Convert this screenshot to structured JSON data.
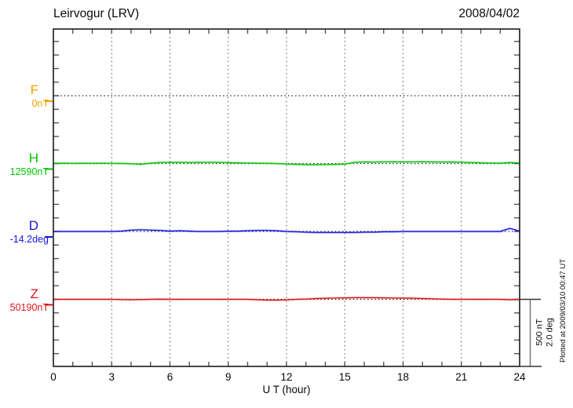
{
  "header": {
    "title": "Leirvogur (LRV)",
    "date": "2008/04/02"
  },
  "axes": {
    "xlabel": "U T (hour)",
    "x_ticks": [
      0,
      3,
      6,
      9,
      12,
      15,
      18,
      21,
      24
    ]
  },
  "scale_bar": {
    "nt": "500 nT",
    "deg": "2.0 deg"
  },
  "footer": {
    "plotted_at": "Plotted at 2009/03/10 00:47 UT"
  },
  "chart_data": {
    "type": "line",
    "title": "Leirvogur (LRV)",
    "date": "2008/04/02",
    "xlabel": "U T (hour)",
    "x_range": [
      0,
      24
    ],
    "x_ticks": [
      0,
      3,
      6,
      9,
      12,
      15,
      18,
      21,
      24
    ],
    "x_step_hours": 0.5,
    "grid": "dotted vertical lines every 3 h; dotted horizontal baseline per component; minor axis ticks every 1 h and every 100 nT (0.4 deg)",
    "legend_position": "left margin, one colored label per component",
    "scale": {
      "nT_per_division": 500,
      "deg_per_division": 2.0
    },
    "series": [
      {
        "name": "F",
        "reference": "0nT",
        "unit": "nT",
        "color": "#F0A300",
        "has_trace": false,
        "offsets": []
      },
      {
        "name": "H",
        "reference": "12590nT",
        "unit": "nT",
        "color": "#00C400",
        "has_trace": true,
        "offsets": [
          2,
          3,
          2,
          3,
          2,
          3,
          2,
          1,
          -2,
          -5,
          3,
          8,
          10,
          9,
          8,
          9,
          10,
          9,
          7,
          5,
          4,
          3,
          2,
          0,
          -3,
          -6,
          -8,
          -8,
          -7,
          -6,
          -4,
          10,
          12,
          11,
          13,
          14,
          12,
          13,
          14,
          12,
          11,
          12,
          10,
          8,
          6,
          4,
          3,
          8,
          4
        ]
      },
      {
        "name": "D",
        "reference": "-14.2deg",
        "unit": "deg",
        "color": "#1414E0",
        "has_trace": true,
        "offsets": [
          0,
          0,
          0,
          0,
          0,
          0,
          0,
          0.01,
          0.04,
          0.05,
          0.04,
          0.03,
          0.01,
          0.02,
          0.01,
          0,
          0,
          0,
          0.01,
          0.01,
          0.02,
          0.03,
          0.03,
          0.02,
          0,
          -0.01,
          -0.02,
          -0.03,
          -0.03,
          -0.03,
          -0.03,
          -0.03,
          -0.02,
          -0.02,
          -0.01,
          -0.01,
          0,
          0,
          0,
          0,
          0,
          0,
          0,
          0,
          0,
          0,
          0,
          0.09,
          0.01
        ]
      },
      {
        "name": "Z",
        "reference": "50190nT",
        "unit": "nT",
        "color": "#DC1414",
        "has_trace": true,
        "offsets": [
          0,
          0,
          0,
          0,
          0,
          0,
          0,
          -2,
          -3,
          -2,
          0,
          1,
          0,
          0,
          0,
          0,
          0,
          0,
          0,
          0,
          0,
          -3,
          -6,
          -6,
          -4,
          0,
          2,
          6,
          8,
          10,
          11,
          12,
          12,
          12,
          11,
          10,
          9,
          8,
          6,
          4,
          2,
          0,
          0,
          0,
          0,
          0,
          0,
          -3,
          -1
        ]
      }
    ]
  }
}
